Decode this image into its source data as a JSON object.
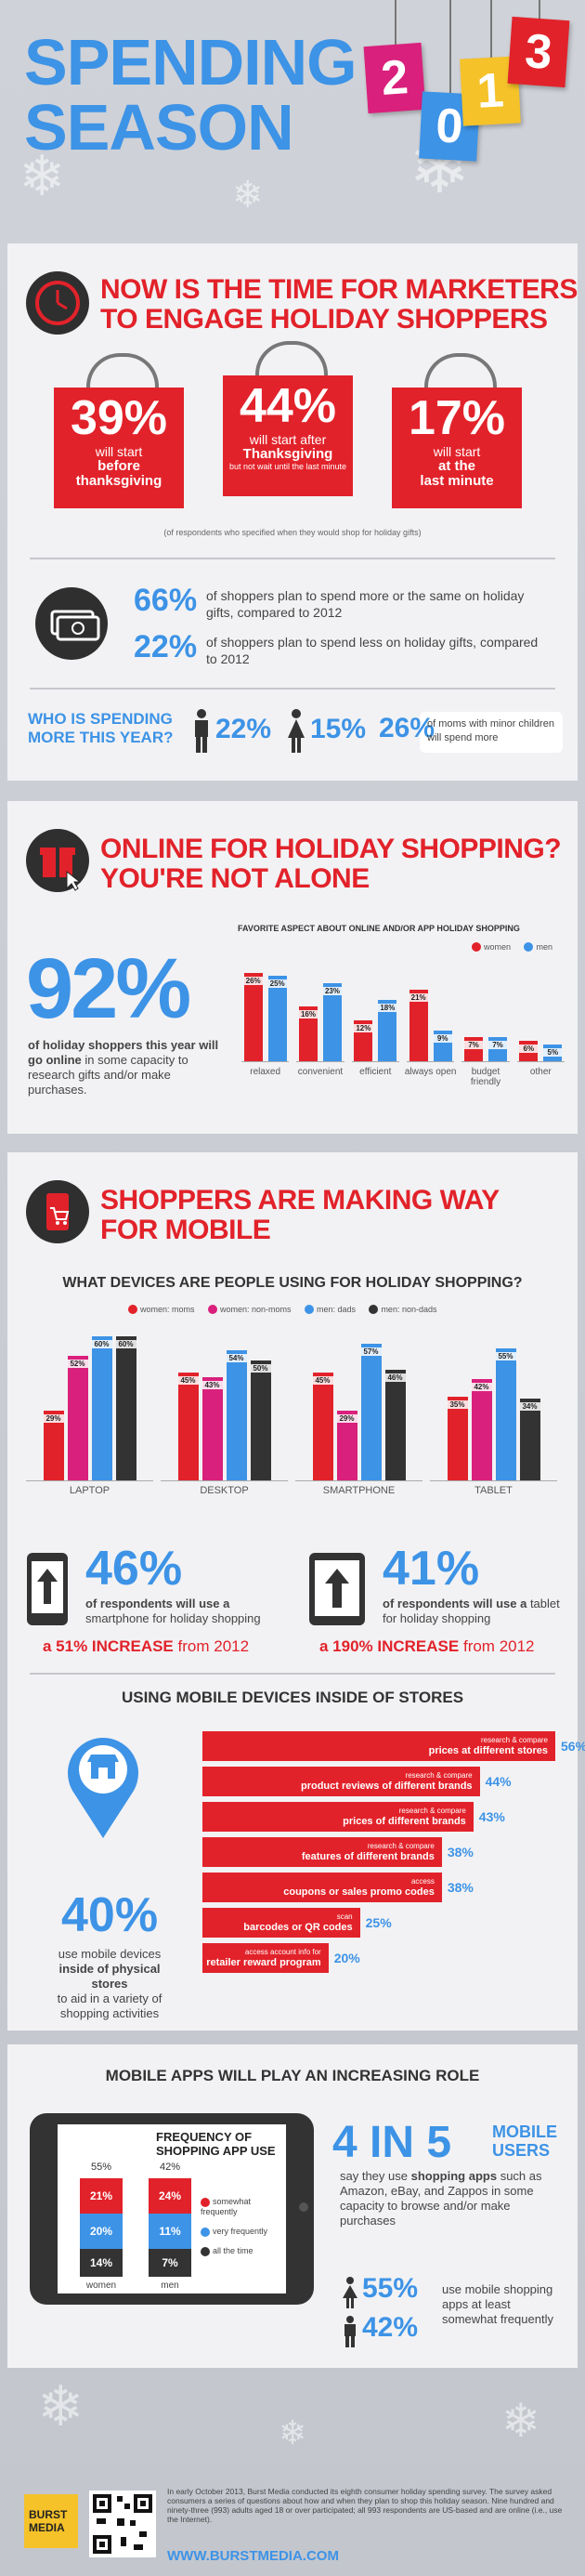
{
  "header": {
    "title_line1": "SPENDING",
    "title_line2": "SEASON",
    "year_digits": [
      "2",
      "0",
      "1",
      "3"
    ],
    "tag_colors": [
      "#d9207c",
      "#3d93e6",
      "#f5c229",
      "#e2222a"
    ]
  },
  "section1": {
    "title_line1": "NOW IS THE TIME FOR MARKETERS",
    "title_line2": "TO ENGAGE HOLIDAY SHOPPERS",
    "bags": [
      {
        "pct": "39%",
        "line1": "will start",
        "bold1": "before",
        "bold2": "thanksgiving",
        "small": ""
      },
      {
        "pct": "44%",
        "line1": "will start after",
        "bold1": "Thanksgiving",
        "bold2": "",
        "small": "but not wait until the last minute"
      },
      {
        "pct": "17%",
        "line1": "will start",
        "bold1": "at the",
        "bold2": "last minute",
        "small": ""
      }
    ],
    "bags_note": "(of respondents who specified when they would shop for holiday gifts)",
    "spend_more_pct": "66%",
    "spend_more_text": "of shoppers plan to spend more or the same on holiday gifts, compared to 2012",
    "spend_less_pct": "22%",
    "spend_less_text": "of shoppers plan to spend less on holiday gifts, compared to 2012",
    "who_label_1": "WHO IS SPENDING",
    "who_label_2": "MORE THIS YEAR?",
    "men_pct": "22%",
    "women_pct": "15%",
    "moms_pct": "26%",
    "moms_text": "of moms with minor children will spend more"
  },
  "section2": {
    "title_line1": "ONLINE FOR HOLIDAY SHOPPING?",
    "title_line2": "YOU'RE NOT ALONE",
    "big_pct": "92%",
    "big_text_bold": "of holiday shoppers this year will go online",
    "big_text_rest": "in some capacity to research gifts and/or make purchases."
  },
  "chart_data": [
    {
      "type": "bar",
      "title": "FAVORITE ASPECT ABOUT ONLINE AND/OR APP HOLIDAY SHOPPING",
      "categories": [
        "relaxed",
        "convenient",
        "efficient",
        "always open",
        "budget friendly",
        "other"
      ],
      "series": [
        {
          "name": "women",
          "values": [
            26,
            16,
            12,
            21,
            7,
            6
          ],
          "color": "#e2222a"
        },
        {
          "name": "men",
          "values": [
            25,
            23,
            18,
            9,
            7,
            5
          ],
          "color": "#3d93e6"
        }
      ],
      "value_suffix": "%",
      "ylim": [
        0,
        30
      ]
    },
    {
      "type": "bar",
      "title": "WHAT DEVICES ARE PEOPLE USING FOR HOLIDAY SHOPPING?",
      "categories": [
        "LAPTOP",
        "DESKTOP",
        "SMARTPHONE",
        "TABLET"
      ],
      "series": [
        {
          "name": "women: moms",
          "values": [
            29,
            45,
            45,
            35
          ],
          "color": "#e2222a"
        },
        {
          "name": "women: non-moms",
          "values": [
            52,
            43,
            29,
            42
          ],
          "color": "#d9207c"
        },
        {
          "name": "men: dads",
          "values": [
            60,
            54,
            57,
            55
          ],
          "color": "#3d93e6"
        },
        {
          "name": "men: non-dads",
          "values": [
            60,
            50,
            46,
            34
          ],
          "color": "#333333"
        }
      ],
      "value_suffix": "%",
      "ylim": [
        0,
        65
      ]
    },
    {
      "type": "bar",
      "title": "USING MOBILE DEVICES INSIDE OF STORES",
      "categories": [
        "research & compare prices at different stores",
        "research & compare product reviews of different brands",
        "research & compare prices of different brands",
        "research & compare features of different brands",
        "access coupons or sales promo codes",
        "scan barcodes or QR codes",
        "access account info for retailer reward program"
      ],
      "values": [
        56,
        44,
        43,
        38,
        38,
        25,
        20
      ],
      "value_suffix": "%",
      "orientation": "horizontal"
    },
    {
      "type": "bar",
      "title": "FREQUENCY OF SHOPPING APP USE",
      "stacked": true,
      "categories": [
        "women",
        "men"
      ],
      "series": [
        {
          "name": "somewhat frequently",
          "values": [
            55,
            42
          ],
          "color": "#e2222a"
        },
        {
          "name": "very frequently",
          "values": [
            21,
            24
          ],
          "color": "#3d93e6"
        },
        {
          "name": "all the time",
          "values": [
            14,
            11
          ],
          "color": "#333333"
        }
      ],
      "extra_label": {
        "men_all_the_time": "7%"
      }
    }
  ],
  "section3": {
    "title_line1": "SHOPPERS ARE MAKING WAY",
    "title_line2": "FOR MOBILE",
    "smartphone_pct": "46%",
    "smartphone_text_bold": "of respondents will use a",
    "smartphone_text_rest": "smartphone for holiday shopping",
    "smartphone_increase_bold": "a 51% INCREASE",
    "smartphone_increase_rest": "from 2012",
    "tablet_pct": "41%",
    "tablet_text_bold": "of respondents will use a",
    "tablet_text_rest": "tablet for holiday shopping",
    "tablet_increase_bold": "a 190% INCREASE",
    "tablet_increase_rest": "from 2012"
  },
  "section4": {
    "title": "USING MOBILE DEVICES INSIDE OF STORES",
    "big_pct": "40%",
    "big_text_1": "use mobile devices",
    "big_text_bold": "inside of physical stores",
    "big_text_2": "to aid in a variety of shopping activities",
    "rows": [
      {
        "small": "research & compare",
        "bold": "prices at different stores",
        "pct": "56%"
      },
      {
        "small": "research & compare",
        "bold": "product reviews of different brands",
        "pct": "44%"
      },
      {
        "small": "research & compare",
        "bold": "prices of different brands",
        "pct": "43%"
      },
      {
        "small": "research & compare",
        "bold": "features of different brands",
        "pct": "38%"
      },
      {
        "small": "access",
        "bold": "coupons or sales promo codes",
        "pct": "38%"
      },
      {
        "small": "scan",
        "bold": "barcodes or QR codes",
        "pct": "25%"
      },
      {
        "small": "access account info for",
        "bold": "retailer reward program",
        "pct": "20%"
      }
    ]
  },
  "section5": {
    "title": "MOBILE APPS WILL PLAY AN INCREASING ROLE",
    "chart_title_1": "FREQUENCY OF",
    "chart_title_2": "SHOPPING APP USE",
    "women_label": "women",
    "men_label": "men",
    "women_vals": [
      "55%",
      "21%",
      "20%",
      "14%"
    ],
    "men_vals": [
      "42%",
      "24%",
      "11%",
      "7%"
    ],
    "legend": [
      "somewhat frequently",
      "very frequently",
      "all the time"
    ],
    "big_stat": "4 IN 5",
    "big_stat_label_1": "MOBILE",
    "big_stat_label_2": "USERS",
    "apps_text_1": "say they use",
    "apps_text_bold": "shopping apps",
    "apps_text_2": "such as Amazon, eBay, and Zappos in some capacity to browse and/or make purchases",
    "women_app_pct": "55%",
    "men_app_pct": "42%",
    "app_freq_text": "use mobile shopping apps at least somewhat frequently"
  },
  "footer": {
    "logo_line1": "BURST",
    "logo_line2": "MEDIA",
    "note": "In early October 2013, Burst Media conducted its eighth consumer holiday spending survey. The survey asked consumers a series of questions about how and when they plan to shop this holiday season. Nine hundred and ninety-three (993) adults aged 18 or over participated; all 993 respondents are US-based and are online (i.e., use the Internet).",
    "url": "WWW.BURSTMEDIA.COM"
  }
}
